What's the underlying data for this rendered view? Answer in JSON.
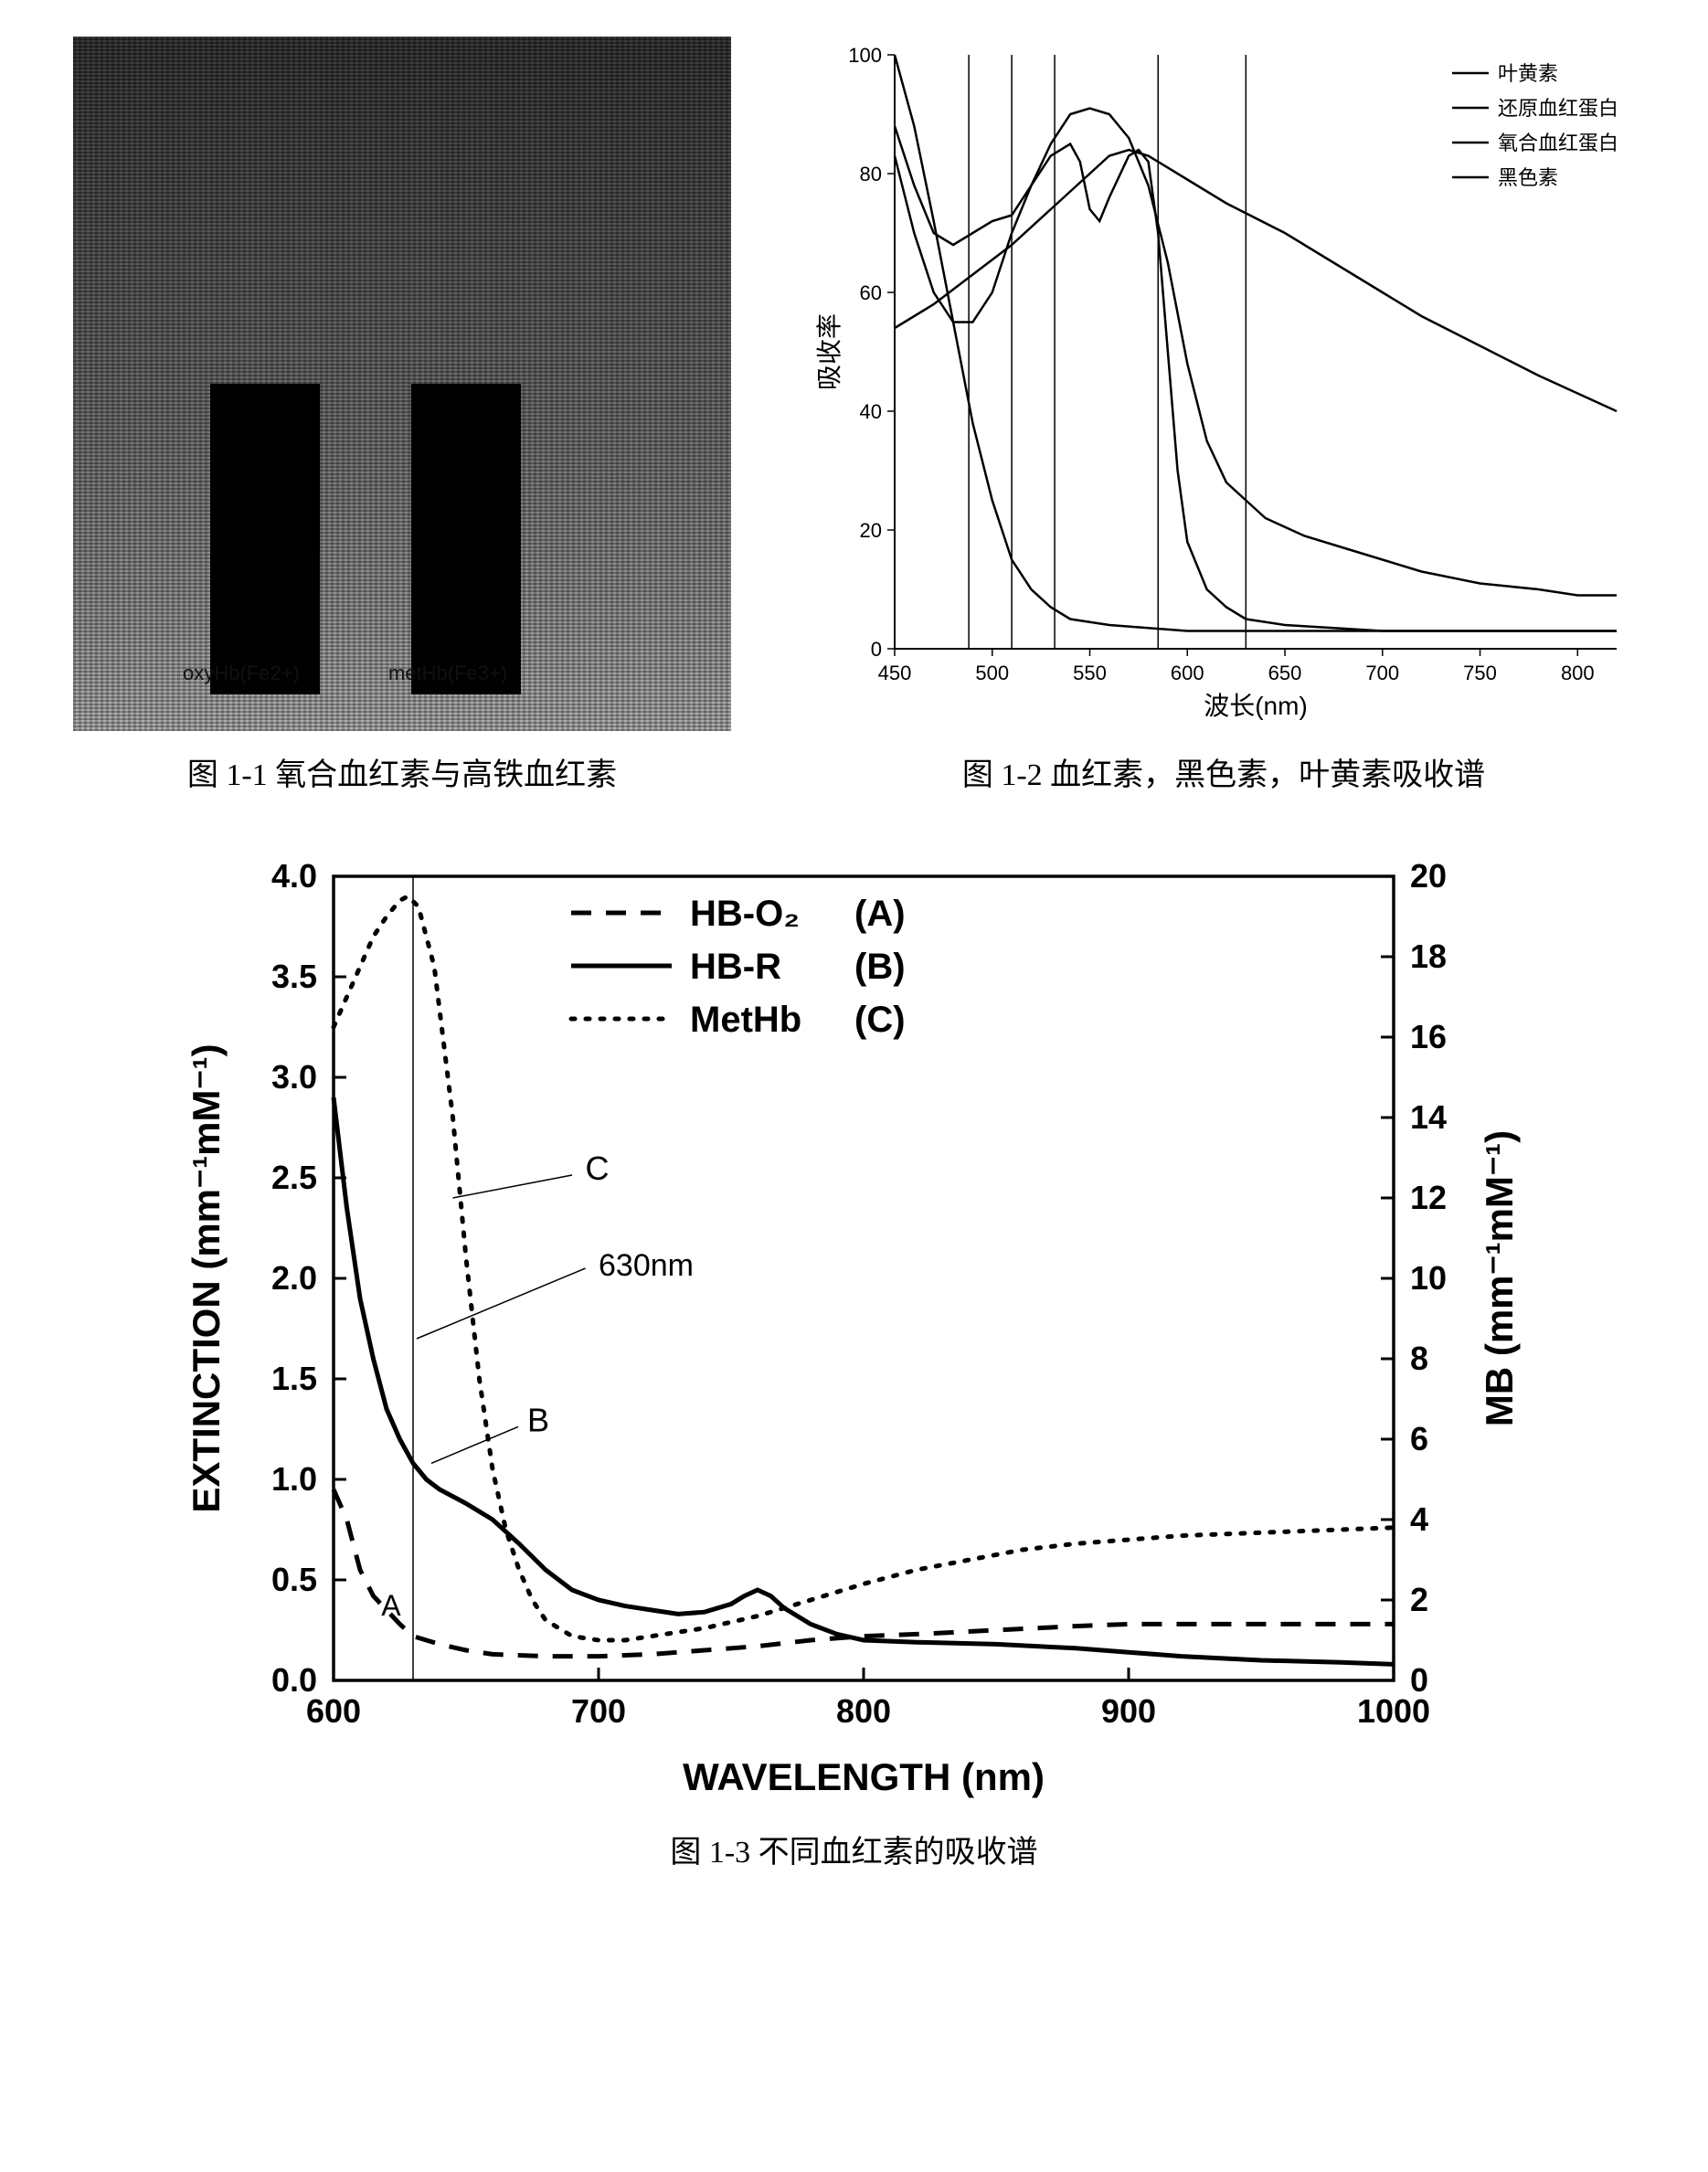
{
  "fig11": {
    "caption": "图 1-1  氧合血红素与高铁血红素",
    "tube1_label": "oxyHb(Fe2+)",
    "tube2_label": "metHb(Fe3+)",
    "tube_color": "#000000",
    "bg_gradient_top": "#2a2a2a",
    "bg_gradient_bottom": "#aaaaaa"
  },
  "fig12": {
    "caption": "图 1-2  血红素，黑色素，叶黄素吸收谱",
    "type": "line",
    "xlabel": "波长(nm)",
    "ylabel": "吸收率",
    "xlim": [
      450,
      820
    ],
    "ylim": [
      0,
      100
    ],
    "xtick_step": 50,
    "ytick_step": 20,
    "label_fontsize": 28,
    "tick_fontsize": 22,
    "line_color": "#000000",
    "line_width": 2.5,
    "vline_width": 1.5,
    "vline_color": "#000000",
    "background_color": "#ffffff",
    "legend_items": [
      "叶黄素",
      "还原血红蛋白",
      "氧合血红蛋白",
      "黑色素"
    ],
    "vertical_lines": [
      488,
      510,
      532,
      585,
      630
    ],
    "series": {
      "lutein": [
        [
          450,
          100
        ],
        [
          460,
          88
        ],
        [
          470,
          72
        ],
        [
          480,
          55
        ],
        [
          490,
          38
        ],
        [
          500,
          25
        ],
        [
          510,
          15
        ],
        [
          520,
          10
        ],
        [
          530,
          7
        ],
        [
          540,
          5
        ],
        [
          560,
          4
        ],
        [
          600,
          3
        ],
        [
          650,
          3
        ],
        [
          700,
          3
        ],
        [
          750,
          3
        ],
        [
          800,
          3
        ],
        [
          820,
          3
        ]
      ],
      "deoxyHb": [
        [
          450,
          88
        ],
        [
          460,
          78
        ],
        [
          470,
          70
        ],
        [
          480,
          68
        ],
        [
          490,
          70
        ],
        [
          500,
          72
        ],
        [
          510,
          73
        ],
        [
          520,
          78
        ],
        [
          530,
          85
        ],
        [
          540,
          90
        ],
        [
          550,
          91
        ],
        [
          560,
          90
        ],
        [
          570,
          86
        ],
        [
          580,
          78
        ],
        [
          590,
          65
        ],
        [
          600,
          48
        ],
        [
          610,
          35
        ],
        [
          620,
          28
        ],
        [
          630,
          25
        ],
        [
          640,
          22
        ],
        [
          660,
          19
        ],
        [
          680,
          17
        ],
        [
          700,
          15
        ],
        [
          720,
          13
        ],
        [
          750,
          11
        ],
        [
          780,
          10
        ],
        [
          800,
          9
        ],
        [
          820,
          9
        ]
      ],
      "oxyHb": [
        [
          450,
          83
        ],
        [
          460,
          70
        ],
        [
          470,
          60
        ],
        [
          480,
          55
        ],
        [
          490,
          55
        ],
        [
          500,
          60
        ],
        [
          510,
          70
        ],
        [
          520,
          78
        ],
        [
          530,
          83
        ],
        [
          540,
          85
        ],
        [
          545,
          82
        ],
        [
          550,
          74
        ],
        [
          555,
          72
        ],
        [
          560,
          76
        ],
        [
          570,
          83
        ],
        [
          575,
          84
        ],
        [
          580,
          82
        ],
        [
          585,
          70
        ],
        [
          590,
          50
        ],
        [
          595,
          30
        ],
        [
          600,
          18
        ],
        [
          610,
          10
        ],
        [
          620,
          7
        ],
        [
          630,
          5
        ],
        [
          650,
          4
        ],
        [
          700,
          3
        ],
        [
          750,
          3
        ],
        [
          800,
          3
        ],
        [
          820,
          3
        ]
      ],
      "melanin": [
        [
          450,
          54
        ],
        [
          470,
          58
        ],
        [
          490,
          63
        ],
        [
          510,
          68
        ],
        [
          530,
          74
        ],
        [
          550,
          80
        ],
        [
          560,
          83
        ],
        [
          570,
          84
        ],
        [
          580,
          83
        ],
        [
          600,
          79
        ],
        [
          620,
          75
        ],
        [
          650,
          70
        ],
        [
          680,
          64
        ],
        [
          700,
          60
        ],
        [
          720,
          56
        ],
        [
          750,
          51
        ],
        [
          780,
          46
        ],
        [
          800,
          43
        ],
        [
          820,
          40
        ]
      ]
    }
  },
  "fig13": {
    "caption": "图 1-3  不同血红素的吸收谱",
    "type": "line",
    "xlabel": "WAVELENGTH (nm)",
    "ylabel_left": "EXTINCTION (mm⁻¹mM⁻¹)",
    "ylabel_right": "MB (mm⁻¹mM⁻¹)",
    "xlim": [
      600,
      1000
    ],
    "ylim_left": [
      0.0,
      4.0
    ],
    "ylim_right": [
      0,
      20
    ],
    "xtick_step": 100,
    "ytick_left_step": 0.5,
    "ytick_right_step": 2,
    "label_fontsize": 42,
    "tick_fontsize": 36,
    "tick_fontweight": "bold",
    "line_width": 5,
    "line_color": "#000000",
    "background_color": "#ffffff",
    "vline_x": 630,
    "vline_color": "#000000",
    "vline_width": 1.5,
    "annotation_630": "630nm",
    "annot_A": "A",
    "annot_B": "B",
    "annot_C": "C",
    "legend": [
      {
        "label": "HB-O₂",
        "paren": "(A)",
        "style": "dash"
      },
      {
        "label": "HB-R",
        "paren": "(B)",
        "style": "solid"
      },
      {
        "label": "MetHb",
        "paren": "(C)",
        "style": "dot"
      }
    ],
    "series": {
      "hbo2": [
        [
          600,
          0.95
        ],
        [
          605,
          0.8
        ],
        [
          610,
          0.55
        ],
        [
          615,
          0.42
        ],
        [
          620,
          0.35
        ],
        [
          625,
          0.28
        ],
        [
          630,
          0.22
        ],
        [
          640,
          0.18
        ],
        [
          650,
          0.15
        ],
        [
          660,
          0.13
        ],
        [
          680,
          0.12
        ],
        [
          700,
          0.12
        ],
        [
          720,
          0.13
        ],
        [
          740,
          0.15
        ],
        [
          760,
          0.17
        ],
        [
          780,
          0.2
        ],
        [
          800,
          0.22
        ],
        [
          820,
          0.23
        ],
        [
          850,
          0.25
        ],
        [
          880,
          0.27
        ],
        [
          900,
          0.28
        ],
        [
          920,
          0.28
        ],
        [
          950,
          0.28
        ],
        [
          980,
          0.28
        ],
        [
          1000,
          0.28
        ]
      ],
      "hbr": [
        [
          600,
          2.9
        ],
        [
          605,
          2.35
        ],
        [
          610,
          1.9
        ],
        [
          615,
          1.6
        ],
        [
          620,
          1.35
        ],
        [
          625,
          1.2
        ],
        [
          630,
          1.08
        ],
        [
          635,
          1.0
        ],
        [
          640,
          0.95
        ],
        [
          650,
          0.88
        ],
        [
          660,
          0.8
        ],
        [
          670,
          0.68
        ],
        [
          680,
          0.55
        ],
        [
          690,
          0.45
        ],
        [
          700,
          0.4
        ],
        [
          710,
          0.37
        ],
        [
          720,
          0.35
        ],
        [
          730,
          0.33
        ],
        [
          740,
          0.34
        ],
        [
          750,
          0.38
        ],
        [
          755,
          0.42
        ],
        [
          760,
          0.45
        ],
        [
          765,
          0.42
        ],
        [
          770,
          0.36
        ],
        [
          780,
          0.28
        ],
        [
          790,
          0.23
        ],
        [
          800,
          0.2
        ],
        [
          820,
          0.19
        ],
        [
          850,
          0.18
        ],
        [
          880,
          0.16
        ],
        [
          900,
          0.14
        ],
        [
          920,
          0.12
        ],
        [
          950,
          0.1
        ],
        [
          980,
          0.09
        ],
        [
          1000,
          0.08
        ]
      ],
      "methb": [
        [
          600,
          3.25
        ],
        [
          605,
          3.4
        ],
        [
          610,
          3.55
        ],
        [
          615,
          3.7
        ],
        [
          620,
          3.8
        ],
        [
          625,
          3.88
        ],
        [
          628,
          3.9
        ],
        [
          632,
          3.85
        ],
        [
          638,
          3.55
        ],
        [
          645,
          2.8
        ],
        [
          650,
          2.1
        ],
        [
          655,
          1.5
        ],
        [
          660,
          1.05
        ],
        [
          665,
          0.75
        ],
        [
          670,
          0.55
        ],
        [
          675,
          0.4
        ],
        [
          680,
          0.3
        ],
        [
          690,
          0.22
        ],
        [
          700,
          0.2
        ],
        [
          710,
          0.2
        ],
        [
          720,
          0.22
        ],
        [
          740,
          0.26
        ],
        [
          760,
          0.32
        ],
        [
          780,
          0.4
        ],
        [
          800,
          0.48
        ],
        [
          820,
          0.55
        ],
        [
          840,
          0.6
        ],
        [
          860,
          0.65
        ],
        [
          880,
          0.68
        ],
        [
          900,
          0.7
        ],
        [
          920,
          0.72
        ],
        [
          940,
          0.73
        ],
        [
          960,
          0.74
        ],
        [
          980,
          0.75
        ],
        [
          1000,
          0.76
        ]
      ]
    }
  }
}
